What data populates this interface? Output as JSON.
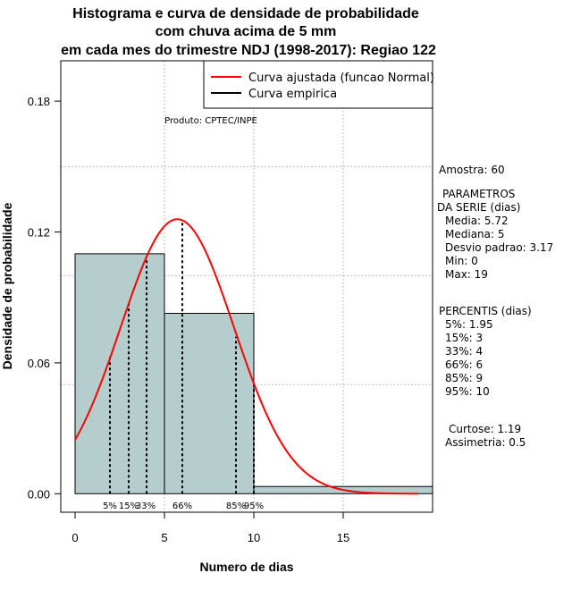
{
  "chart_data": {
    "type": "bar",
    "title_lines": [
      "Histograma e curva de densidade de probabilidade",
      "com chuva acima de 5 mm",
      "em cada mes do trimestre NDJ (1998-2017): Regiao 122"
    ],
    "xlabel": "Numero de dias",
    "ylabel": "Densidade de probabilidade",
    "xlim": [
      -0.8,
      20
    ],
    "ylim": [
      -0.0085,
      0.1985
    ],
    "x_ticks": [
      0,
      5,
      10,
      15
    ],
    "x_tick_labels": [
      "0",
      "5",
      "10",
      "15"
    ],
    "y_ticks": [
      0.0,
      0.06,
      0.12,
      0.18
    ],
    "y_tick_labels": [
      "0.00",
      "0.06",
      "0.12",
      "0.18"
    ],
    "grid_y": [
      0.05,
      0.1,
      0.15
    ],
    "grid_x": [
      5,
      10,
      15
    ],
    "bins": [
      {
        "from": 0,
        "to": 5,
        "density": 0.11
      },
      {
        "from": 5,
        "to": 10,
        "density": 0.0827
      },
      {
        "from": 10,
        "to": 20,
        "density": 0.0033
      }
    ],
    "normal_curve": {
      "mean": 5.72,
      "sd": 3.17,
      "x_from": 0,
      "x_to": 19.2
    },
    "percentile_lines": [
      {
        "x": 1.95,
        "y": 0.063
      },
      {
        "x": 3,
        "y": 0.088
      },
      {
        "x": 4,
        "y": 0.107
      },
      {
        "x": 6,
        "y": 0.125
      },
      {
        "x": 9,
        "y": 0.072
      },
      {
        "x": 10,
        "y": 0.05
      }
    ],
    "percentile_labels": [
      {
        "text": "5%",
        "x": 1.95
      },
      {
        "text": "15%",
        "x": 3.0
      },
      {
        "text": "33%",
        "x": 3.95
      },
      {
        "text": "66%",
        "x": 6.0
      },
      {
        "text": "85%",
        "x": 9.0
      },
      {
        "text": "95%",
        "x": 10.0
      }
    ],
    "legend": {
      "position": "top-right",
      "entries": [
        {
          "label": "Curva ajustada (funcao Normal)",
          "color": "#ff0000"
        },
        {
          "label": "Curva empirica",
          "color": "#000000"
        }
      ]
    },
    "product_label": "Produto: CPTEC/INPE",
    "colors": {
      "bar_fill": "#b5cdcd",
      "curve": "#ff0000",
      "grid": "#bebebe"
    }
  },
  "side_panel": {
    "amostra": "Amostra: 60",
    "parametros_lines": [
      "PARAMETROS",
      "DA SERIE (dias)"
    ],
    "param_values": [
      "Media: 5.72",
      "Mediana: 5",
      "Desvio padrao: 3.17",
      "Min: 0",
      "Max: 19"
    ],
    "percentis_title": "PERCENTIS (dias)",
    "percentis_values": [
      "5%: 1.95",
      "15%: 3",
      "33%: 4",
      "66%: 6",
      "85%: 9",
      "95%: 10"
    ],
    "curtose": "Curtose: 1.19",
    "assimetria": "Assimetria: 0.5"
  }
}
